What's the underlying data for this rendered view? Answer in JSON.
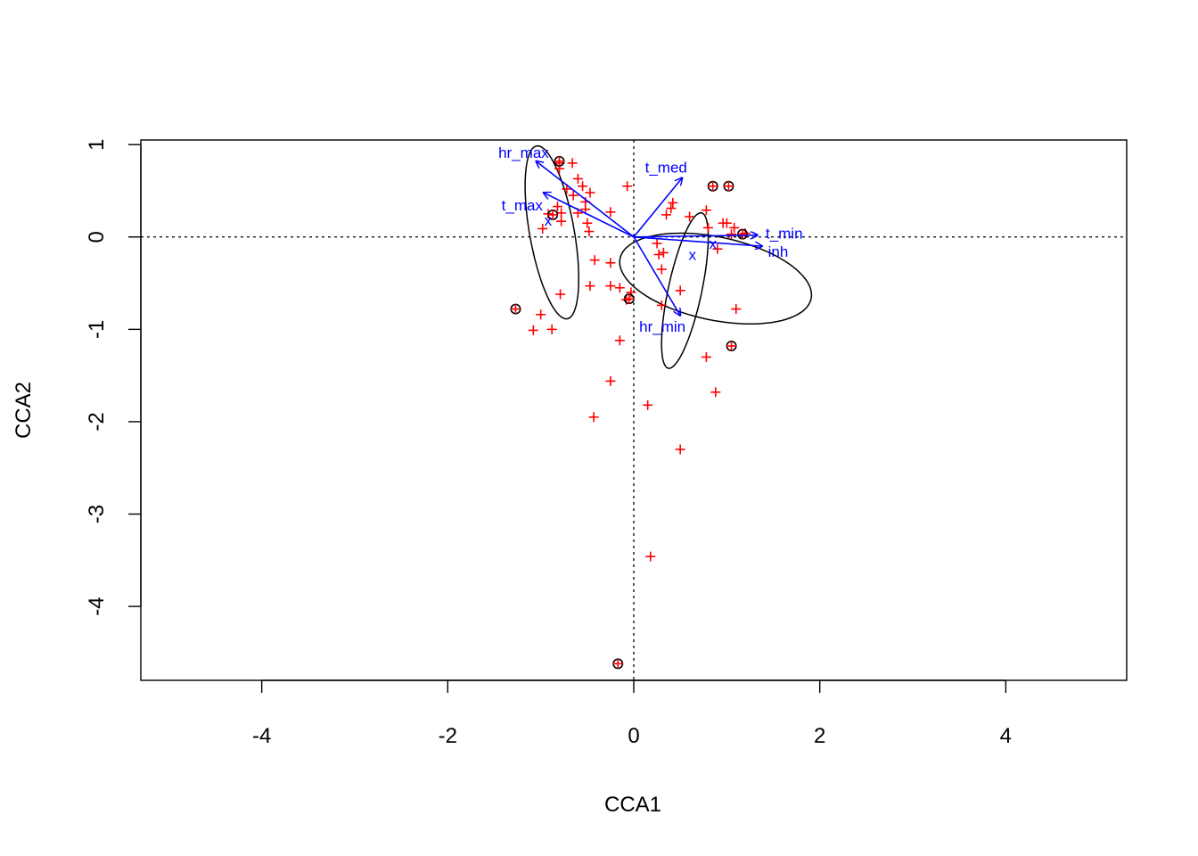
{
  "chart_data": {
    "type": "scatter",
    "title": "",
    "xlabel": "CCA1",
    "ylabel": "CCA2",
    "xlim": [
      -5.3,
      5.3
    ],
    "ylim": [
      -4.8,
      1.05
    ],
    "x_ticks": [
      -4,
      -2,
      0,
      2,
      4
    ],
    "y_ticks": [
      1,
      0,
      -1,
      -2,
      -3,
      -4
    ],
    "zero_lines": true,
    "sites": [
      [
        -0.8,
        0.8
      ],
      [
        -0.66,
        0.8
      ],
      [
        -0.8,
        0.74
      ],
      [
        -0.6,
        0.63
      ],
      [
        -0.55,
        0.55
      ],
      [
        -0.47,
        0.48
      ],
      [
        -0.52,
        0.38
      ],
      [
        -0.65,
        0.45
      ],
      [
        -0.82,
        0.33
      ],
      [
        -0.92,
        0.25
      ],
      [
        -0.78,
        0.26
      ],
      [
        -0.78,
        0.17
      ],
      [
        -0.98,
        0.09
      ],
      [
        -0.6,
        0.26
      ],
      [
        -0.52,
        0.3
      ],
      [
        -0.5,
        0.15
      ],
      [
        -0.25,
        0.27
      ],
      [
        -0.07,
        0.55
      ],
      [
        -0.48,
        0.06
      ],
      [
        -0.42,
        -0.25
      ],
      [
        -0.25,
        -0.28
      ],
      [
        -0.47,
        -0.53
      ],
      [
        -0.25,
        -0.53
      ],
      [
        -0.15,
        -0.55
      ],
      [
        -0.79,
        -0.62
      ],
      [
        -0.03,
        -0.6
      ],
      [
        -0.08,
        -0.68
      ],
      [
        -1.0,
        -0.84
      ],
      [
        -1.08,
        -1.01
      ],
      [
        -0.88,
        -1.0
      ],
      [
        -0.15,
        -1.12
      ],
      [
        -0.25,
        -1.56
      ],
      [
        -0.43,
        -1.95
      ],
      [
        0.15,
        -1.82
      ],
      [
        0.5,
        -2.3
      ],
      [
        0.18,
        -3.46
      ],
      [
        0.3,
        -0.35
      ],
      [
        0.27,
        -0.19
      ],
      [
        0.32,
        -0.17
      ],
      [
        0.35,
        0.24
      ],
      [
        0.42,
        0.37
      ],
      [
        0.4,
        0.31
      ],
      [
        0.78,
        0.29
      ],
      [
        0.8,
        0.1
      ],
      [
        1.0,
        0.15
      ],
      [
        0.96,
        0.15
      ],
      [
        0.6,
        0.22
      ],
      [
        1.08,
        0.1
      ],
      [
        1.05,
        0.03
      ],
      [
        0.9,
        -0.13
      ],
      [
        0.3,
        -0.74
      ],
      [
        0.5,
        -0.58
      ],
      [
        0.78,
        -1.3
      ],
      [
        1.1,
        -0.78
      ],
      [
        0.88,
        -1.68
      ],
      [
        0.25,
        -0.07
      ],
      [
        1.2,
        0.04
      ],
      [
        -0.72,
        0.52
      ]
    ],
    "marked_sites": [
      [
        -0.8,
        0.82
      ],
      [
        -0.87,
        0.24
      ],
      [
        -1.27,
        -0.78
      ],
      [
        -0.05,
        -0.67
      ],
      [
        0.85,
        0.55
      ],
      [
        1.02,
        0.55
      ],
      [
        1.17,
        0.03
      ],
      [
        1.05,
        -1.18
      ],
      [
        -0.17,
        -4.62
      ]
    ],
    "env_arrows": [
      {
        "label": "hr_max",
        "x": -1.05,
        "y": 0.82
      },
      {
        "label": "t_max",
        "x": -0.97,
        "y": 0.48
      },
      {
        "label": "t_med",
        "x": 0.52,
        "y": 0.64
      },
      {
        "label": "t_min",
        "x": 1.33,
        "y": 0.02
      },
      {
        "label": "inh",
        "x": 1.38,
        "y": -0.1
      },
      {
        "label": "hr_min",
        "x": 0.5,
        "y": -0.85
      }
    ],
    "centroids": [
      {
        "label": "x",
        "x": -0.92,
        "y": 0.18
      },
      {
        "label": "x",
        "x": 0.85,
        "y": -0.07
      },
      {
        "label": "x",
        "x": 0.63,
        "y": -0.19
      }
    ],
    "ellipses": [
      {
        "cx": -0.88,
        "cy": 0.05,
        "a": 0.95,
        "b": 0.24,
        "angle_deg": 100
      },
      {
        "cx": 0.55,
        "cy": -0.58,
        "a": 0.86,
        "b": 0.18,
        "angle_deg": 78
      },
      {
        "cx": 0.88,
        "cy": -0.45,
        "a": 1.05,
        "b": 0.45,
        "angle_deg": -12
      }
    ],
    "colors": {
      "sites": "#ff0000",
      "marked": "#000000",
      "arrows": "#0000ff",
      "ellipses": "#000000",
      "axes": "#000000"
    }
  }
}
